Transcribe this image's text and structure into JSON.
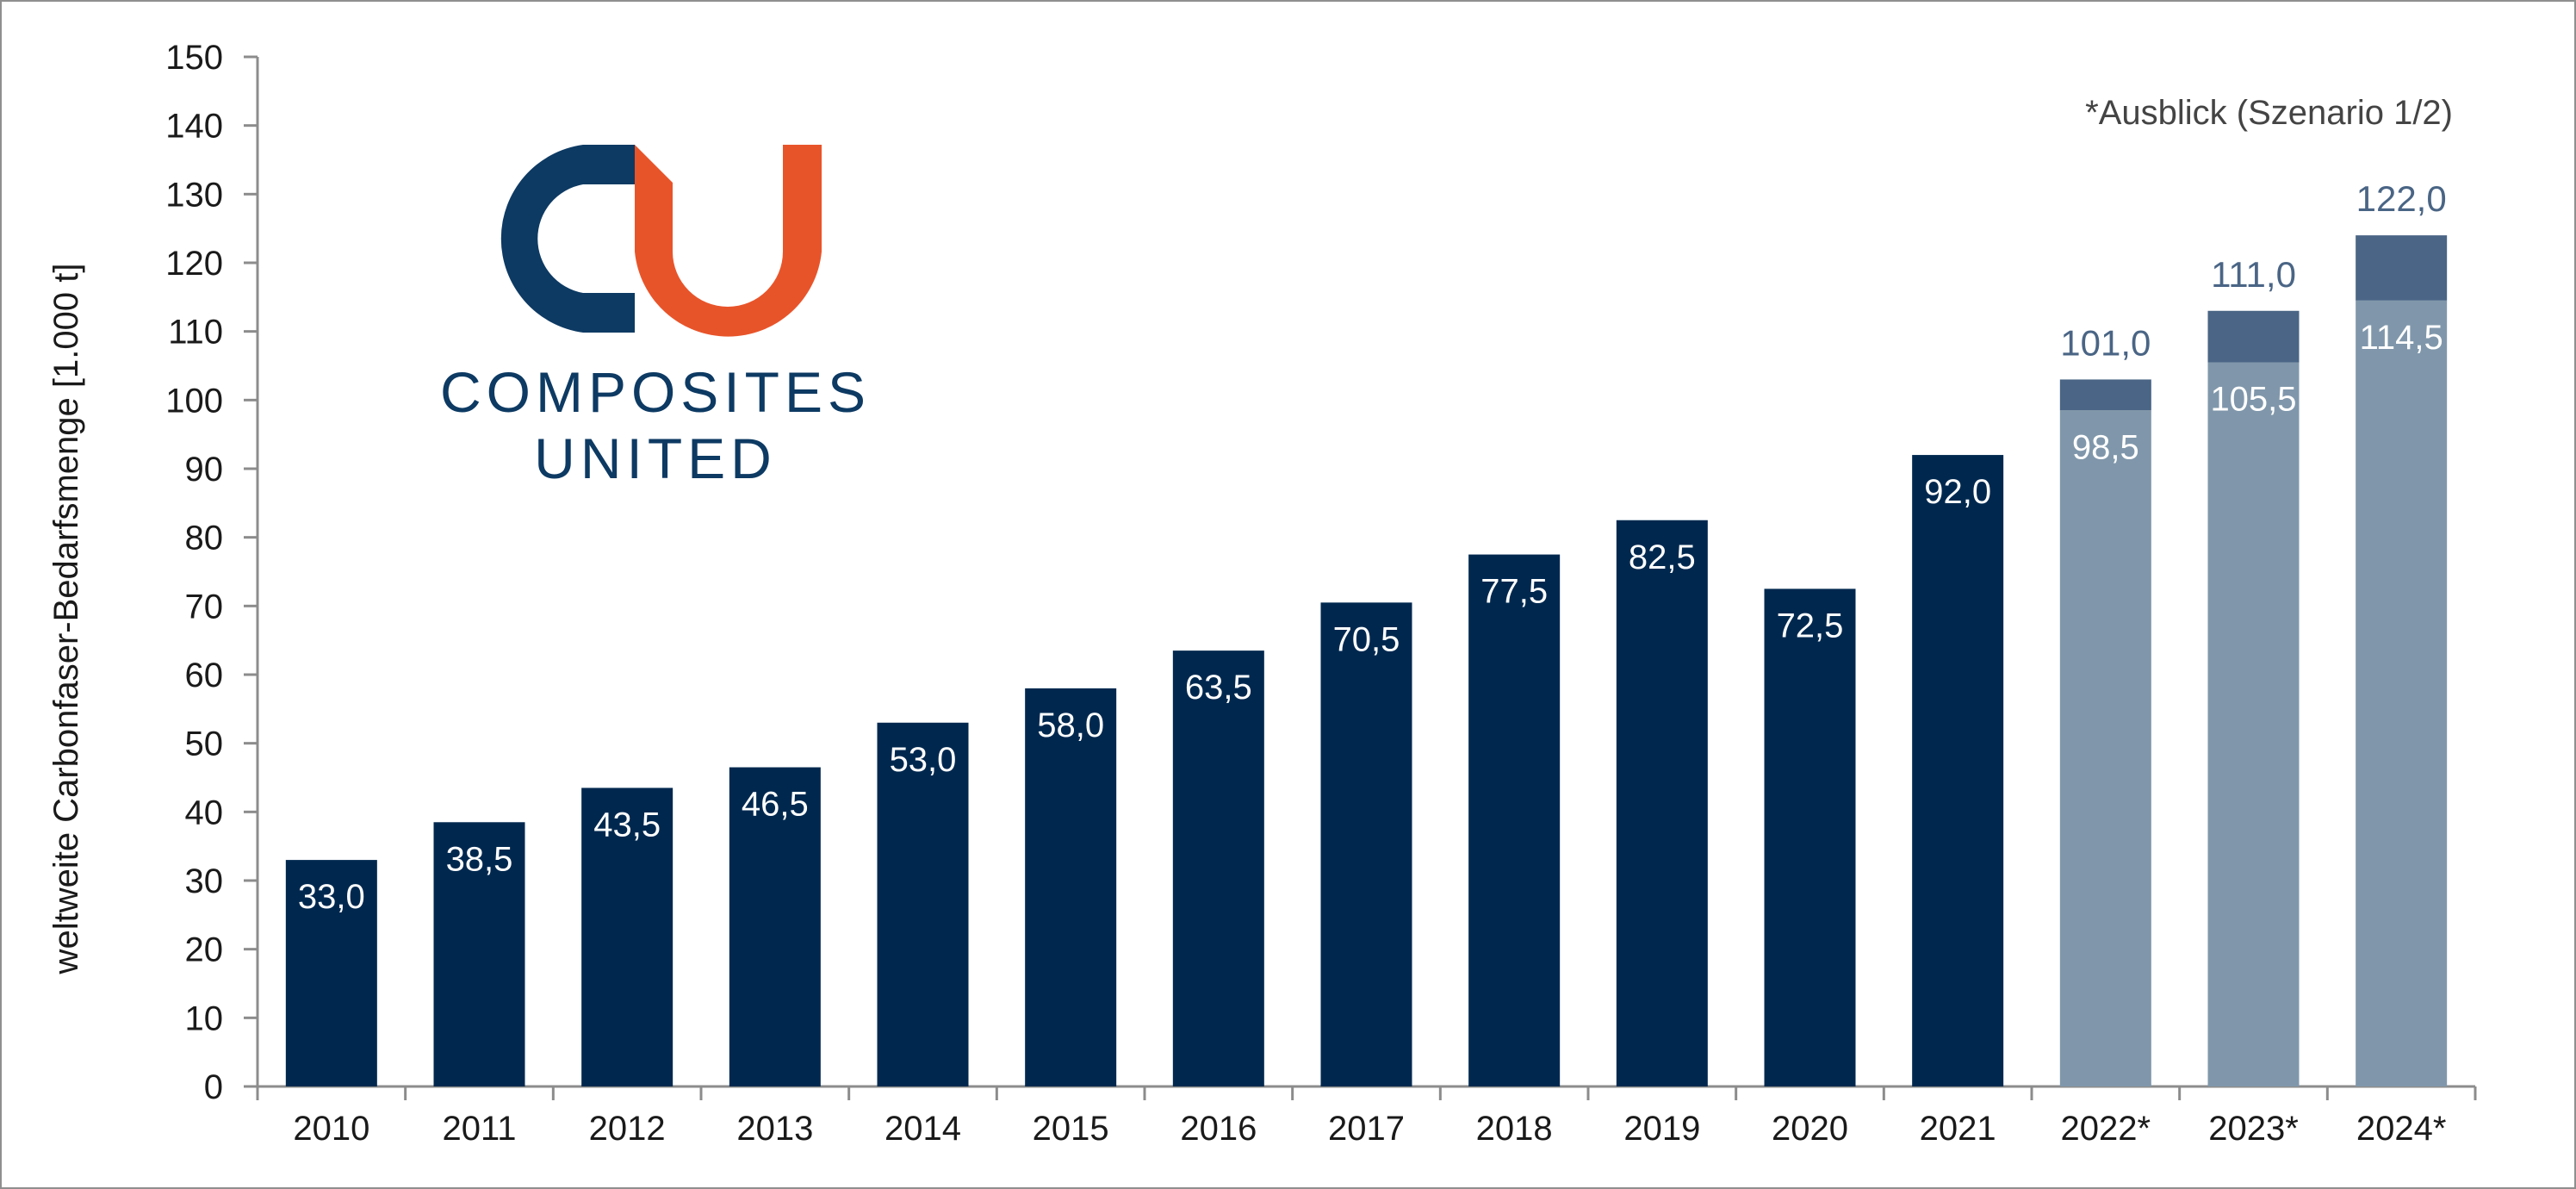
{
  "chart_data": {
    "type": "bar",
    "categories": [
      "2010",
      "2011",
      "2012",
      "2013",
      "2014",
      "2015",
      "2016",
      "2017",
      "2018",
      "2019",
      "2020",
      "2021",
      "2022*",
      "2023*",
      "2024*"
    ],
    "series": [
      {
        "values": [
          33.0,
          38.5,
          43.5,
          46.5,
          53.0,
          58.0,
          63.5,
          70.5,
          77.5,
          82.5,
          72.5,
          92.0,
          98.5,
          105.5,
          114.5
        ]
      },
      {
        "values": [
          null,
          null,
          null,
          null,
          null,
          null,
          null,
          null,
          null,
          null,
          null,
          null,
          101.0,
          111.0,
          122.0
        ]
      }
    ],
    "data_labels": [
      "33,0",
      "38,5",
      "43,5",
      "46,5",
      "53,0",
      "58,0",
      "63,5",
      "70,5",
      "77,5",
      "82,5",
      "72,5",
      "92,0",
      "98,5",
      "105,5",
      "114,5"
    ],
    "upper_labels": [
      "",
      "",
      "",
      "",
      "",
      "",
      "",
      "",
      "",
      "",
      "",
      "",
      "101,0",
      "111,0",
      "122,0"
    ],
    "ylabel": "weltweite Carbonfaser-Bedarfsmenge [1.000 t]",
    "ylim": [
      0,
      150
    ],
    "y_ticks": [
      0,
      10,
      20,
      30,
      40,
      50,
      60,
      70,
      80,
      90,
      100,
      110,
      120,
      130,
      140,
      150
    ],
    "annotation": "*Ausblick (Szenario 1/2)",
    "grid": false,
    "legend": "none",
    "colors": {
      "actual": "#00284f",
      "outlook_base": "#8097ab",
      "outlook_upper": "#4a6585",
      "upper_label": "#4a6585"
    }
  },
  "logo": {
    "line1": "COMPOSITES",
    "line2": "UNITED",
    "colors": {
      "blue": "#0d3a63",
      "orange": "#e8542a"
    }
  }
}
